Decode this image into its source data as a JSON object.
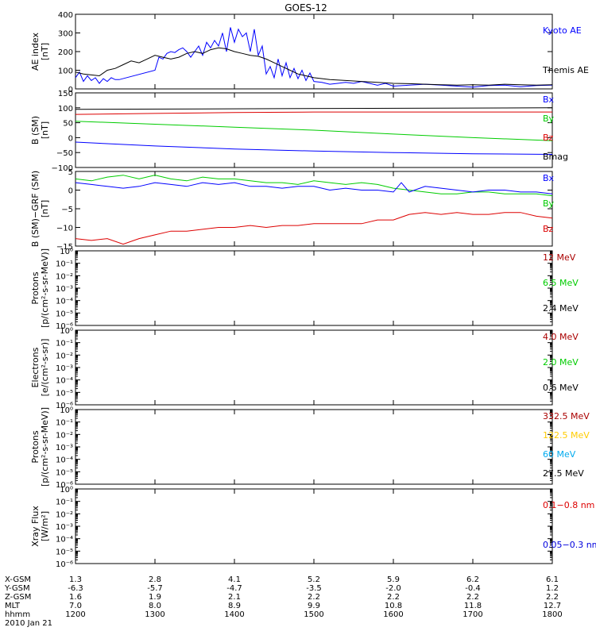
{
  "chart_data": {
    "title": "GOES-12",
    "x_hhmm": [
      "1200",
      "1300",
      "1400",
      "1500",
      "1600",
      "1700",
      "1800"
    ],
    "x_range": [
      1200,
      1800
    ],
    "footer": {
      "rows": [
        {
          "label": "X-GSM",
          "values": [
            "1.3",
            "2.8",
            "4.1",
            "5.2",
            "5.9",
            "6.2",
            "6.1"
          ]
        },
        {
          "label": "Y-GSM",
          "values": [
            "-6.3",
            "-5.7",
            "-4.7",
            "-3.5",
            "-2.0",
            "-0.4",
            "1.2"
          ]
        },
        {
          "label": "Z-GSM",
          "values": [
            "1.6",
            "1.9",
            "2.1",
            "2.2",
            "2.2",
            "2.2",
            "2.2"
          ]
        },
        {
          "label": "MLT",
          "values": [
            "7.0",
            "8.0",
            "8.9",
            "9.9",
            "10.8",
            "11.8",
            "12.7"
          ]
        },
        {
          "label": "hhmm",
          "values": [
            "1200",
            "1300",
            "1400",
            "1500",
            "1600",
            "1700",
            "1800"
          ]
        }
      ],
      "date": "2010 Jan 21"
    },
    "panels": [
      {
        "id": "ae",
        "type": "line",
        "ylabel": [
          "AE index",
          "[nT]"
        ],
        "ylim": [
          0,
          400
        ],
        "ticks": [
          0,
          100,
          200,
          300,
          400
        ],
        "tick_labels": [
          "0",
          "100",
          "200",
          "300",
          "400"
        ],
        "log": false,
        "legend": [
          {
            "label": "Kyoto AE",
            "color": "#0000ff"
          },
          {
            "label": "Themis AE",
            "color": "#000000"
          }
        ],
        "series": [
          {
            "name": "Kyoto AE",
            "color": "#0000ff",
            "x": [
              1200,
              1205,
              1210,
              1215,
              1220,
              1225,
              1230,
              1235,
              1240,
              1245,
              1250,
              1255,
              1300,
              1305,
              1310,
              1315,
              1320,
              1325,
              1330,
              1335,
              1340,
              1345,
              1350,
              1355,
              1360,
              1365,
              1370,
              1375,
              1380,
              1385,
              1390,
              1395,
              1400,
              1405,
              1410,
              1415,
              1420,
              1425,
              1430,
              1435,
              1440,
              1445,
              1450,
              1455,
              1460,
              1465,
              1470,
              1475,
              1480,
              1485,
              1490,
              1495,
              1500,
              1510,
              1520,
              1530,
              1540,
              1550,
              1560,
              1570,
              1580,
              1590,
              1600,
              1620,
              1640,
              1660,
              1680,
              1700,
              1720,
              1740,
              1760,
              1780,
              1800
            ],
            "y": [
              60,
              90,
              40,
              70,
              45,
              60,
              30,
              55,
              40,
              60,
              50,
              50,
              100,
              170,
              160,
              190,
              200,
              195,
              210,
              220,
              200,
              170,
              200,
              230,
              180,
              250,
              220,
              260,
              230,
              300,
              200,
              330,
              250,
              320,
              280,
              300,
              200,
              320,
              180,
              230,
              80,
              120,
              60,
              160,
              70,
              140,
              60,
              110,
              55,
              100,
              45,
              85,
              40,
              35,
              25,
              30,
              35,
              30,
              40,
              30,
              20,
              30,
              15,
              20,
              25,
              20,
              15,
              10,
              18,
              20,
              12,
              18,
              20
            ]
          },
          {
            "name": "Themis AE",
            "color": "#000000",
            "x": [
              1200,
              1210,
              1220,
              1230,
              1240,
              1250,
              1260,
              1270,
              1280,
              1290,
              1300,
              1310,
              1320,
              1330,
              1340,
              1350,
              1360,
              1370,
              1380,
              1390,
              1400,
              1410,
              1420,
              1430,
              1440,
              1450,
              1460,
              1470,
              1480,
              1490,
              1500,
              1520,
              1540,
              1560,
              1580,
              1600,
              1620,
              1640,
              1660,
              1680,
              1700,
              1720,
              1740,
              1760,
              1780,
              1800
            ],
            "y": [
              90,
              80,
              75,
              70,
              100,
              110,
              130,
              150,
              140,
              160,
              180,
              170,
              160,
              170,
              190,
              200,
              190,
              210,
              220,
              215,
              200,
              190,
              180,
              175,
              160,
              140,
              120,
              100,
              80,
              70,
              60,
              50,
              45,
              40,
              35,
              30,
              28,
              25,
              22,
              20,
              22,
              20,
              25,
              22,
              20,
              22
            ]
          }
        ]
      },
      {
        "id": "bsm",
        "type": "line",
        "ylabel": [
          "B (SM)",
          "[nT]"
        ],
        "ylim": [
          -100,
          150
        ],
        "ticks": [
          -100,
          -50,
          0,
          50,
          100,
          150
        ],
        "tick_labels": [
          "−100",
          "−50",
          "0",
          "50",
          "100",
          "150"
        ],
        "log": false,
        "legend": [
          {
            "label": "Bx",
            "color": "#0000ff"
          },
          {
            "label": "By",
            "color": "#00cc00"
          },
          {
            "label": "Bz",
            "color": "#dd0000"
          },
          {
            "label": "Bmag",
            "color": "#000000"
          }
        ],
        "series": [
          {
            "name": "Bmag",
            "color": "#000000",
            "x": [
              1200,
              1800
            ],
            "y": [
              95,
              100
            ]
          },
          {
            "name": "Bz",
            "color": "#dd0000",
            "x": [
              1200,
              1300,
              1400,
              1500,
              1600,
              1700,
              1800
            ],
            "y": [
              78,
              81,
              84,
              86,
              86,
              86,
              86
            ]
          },
          {
            "name": "By",
            "color": "#00cc00",
            "x": [
              1200,
              1300,
              1400,
              1500,
              1600,
              1700,
              1800
            ],
            "y": [
              55,
              45,
              35,
              25,
              12,
              0,
              -10
            ]
          },
          {
            "name": "Bx",
            "color": "#0000ff",
            "x": [
              1200,
              1300,
              1400,
              1500,
              1600,
              1700,
              1800
            ],
            "y": [
              -15,
              -28,
              -38,
              -45,
              -50,
              -54,
              -56
            ]
          }
        ]
      },
      {
        "id": "bdiff",
        "type": "line",
        "ylabel": [
          "B (SM)−GRF (SM)",
          "[nT]"
        ],
        "ylim": [
          -15,
          5
        ],
        "ticks": [
          -15,
          -10,
          -5,
          0,
          5
        ],
        "tick_labels": [
          "−15",
          "−10",
          "−5",
          "0",
          "5"
        ],
        "log": false,
        "legend": [
          {
            "label": "Bx",
            "color": "#0000ff"
          },
          {
            "label": "By",
            "color": "#00cc00"
          },
          {
            "label": "Bz",
            "color": "#dd0000"
          }
        ],
        "series": [
          {
            "name": "By",
            "color": "#00cc00",
            "x": [
              1200,
              1220,
              1240,
              1260,
              1280,
              1300,
              1320,
              1340,
              1360,
              1380,
              1400,
              1420,
              1440,
              1460,
              1480,
              1500,
              1520,
              1540,
              1560,
              1580,
              1600,
              1620,
              1640,
              1660,
              1680,
              1700,
              1720,
              1740,
              1760,
              1780,
              1800
            ],
            "y": [
              3,
              2.5,
              3.5,
              4,
              3,
              4,
              3,
              2.5,
              3.5,
              3,
              3,
              2.5,
              2,
              2,
              1.5,
              2.5,
              2,
              1.5,
              2,
              1.5,
              0.5,
              0,
              -0.5,
              -1,
              -1,
              -0.5,
              -0.5,
              -1,
              -1,
              -1,
              -1.5
            ]
          },
          {
            "name": "Bx",
            "color": "#0000ff",
            "x": [
              1200,
              1220,
              1240,
              1260,
              1280,
              1300,
              1320,
              1340,
              1360,
              1380,
              1400,
              1420,
              1440,
              1460,
              1480,
              1500,
              1520,
              1540,
              1560,
              1580,
              1600,
              1610,
              1620,
              1640,
              1660,
              1680,
              1700,
              1720,
              1740,
              1760,
              1780,
              1800
            ],
            "y": [
              2,
              1.5,
              1,
              0.5,
              1,
              2,
              1.5,
              1,
              2,
              1.5,
              2,
              1,
              1,
              0.5,
              1,
              1,
              0,
              0.5,
              0,
              0,
              -0.5,
              2,
              -0.5,
              1,
              0.5,
              0,
              -0.5,
              0,
              0,
              -0.5,
              -0.5,
              -1
            ]
          },
          {
            "name": "Bz",
            "color": "#dd0000",
            "x": [
              1200,
              1220,
              1240,
              1260,
              1280,
              1300,
              1320,
              1340,
              1360,
              1380,
              1400,
              1420,
              1440,
              1460,
              1480,
              1500,
              1520,
              1540,
              1560,
              1580,
              1600,
              1620,
              1640,
              1660,
              1680,
              1700,
              1720,
              1740,
              1760,
              1780,
              1800
            ],
            "y": [
              -13,
              -13.5,
              -13,
              -14.5,
              -13,
              -12,
              -11,
              -11,
              -10.5,
              -10,
              -10,
              -9.5,
              -10,
              -9.5,
              -9.5,
              -9,
              -9,
              -9,
              -9,
              -8,
              -8,
              -6.5,
              -6,
              -6.5,
              -6,
              -6.5,
              -6.5,
              -6,
              -6,
              -7,
              -7.5
            ]
          }
        ]
      },
      {
        "id": "protons1",
        "type": "line",
        "ylabel": [
          "Protons",
          "[p/(cm²-s-sr-MeV)]"
        ],
        "ylim": [
          -6,
          0
        ],
        "ticks": [
          -6,
          -5,
          -4,
          -3,
          -2,
          -1,
          0
        ],
        "tick_labels": [
          "10⁻⁶",
          "10⁻⁵",
          "10⁻⁴",
          "10⁻³",
          "10⁻²",
          "10⁻¹",
          "10⁰"
        ],
        "log": true,
        "legend": [
          {
            "label": "12 MeV",
            "color": "#aa0000"
          },
          {
            "label": "6.5 MeV",
            "color": "#00cc00"
          },
          {
            "label": "2.4 MeV",
            "color": "#000000"
          }
        ],
        "series": []
      },
      {
        "id": "electrons",
        "type": "line",
        "ylabel": [
          "Electrons",
          "[e/(cm²-s-sr)]"
        ],
        "ylim": [
          -6,
          0
        ],
        "ticks": [
          -6,
          -5,
          -4,
          -3,
          -2,
          -1,
          0
        ],
        "tick_labels": [
          "10⁻⁶",
          "10⁻⁵",
          "10⁻⁴",
          "10⁻³",
          "10⁻²",
          "10⁻¹",
          "10⁰"
        ],
        "log": true,
        "legend": [
          {
            "label": "4.0 MeV",
            "color": "#aa0000"
          },
          {
            "label": "2.0 MeV",
            "color": "#00cc00"
          },
          {
            "label": "0.6 MeV",
            "color": "#000000"
          }
        ],
        "series": []
      },
      {
        "id": "protons2",
        "type": "line",
        "ylabel": [
          "Protons",
          "[p/(cm²-s-sr-MeV)]"
        ],
        "ylim": [
          -6,
          0
        ],
        "ticks": [
          -6,
          -5,
          -4,
          -3,
          -2,
          -1,
          0
        ],
        "tick_labels": [
          "10⁻⁶",
          "10⁻⁵",
          "10⁻⁴",
          "10⁻³",
          "10⁻²",
          "10⁻¹",
          "10⁰"
        ],
        "log": true,
        "legend": [
          {
            "label": "332.5 MeV",
            "color": "#aa0000"
          },
          {
            "label": "122.5 MeV",
            "color": "#ffcc00"
          },
          {
            "label": "60 MeV",
            "color": "#00aaee"
          },
          {
            "label": "27.5 MeV",
            "color": "#000000"
          }
        ],
        "series": []
      },
      {
        "id": "xray",
        "type": "line",
        "ylabel": [
          "Xray Flux",
          "[W/m²]"
        ],
        "ylim": [
          -6,
          0
        ],
        "ticks": [
          -6,
          -5,
          -4,
          -3,
          -2,
          -1,
          0
        ],
        "tick_labels": [
          "10⁻⁶",
          "10⁻⁵",
          "10⁻⁴",
          "10⁻³",
          "10⁻²",
          "10⁻¹",
          "10⁰"
        ],
        "log": true,
        "legend": [
          {
            "label": "0.1−0.8 nm",
            "color": "#dd0000"
          },
          {
            "label": "0.05−0.3 nm",
            "color": "#0000dd"
          }
        ],
        "series": []
      }
    ]
  }
}
